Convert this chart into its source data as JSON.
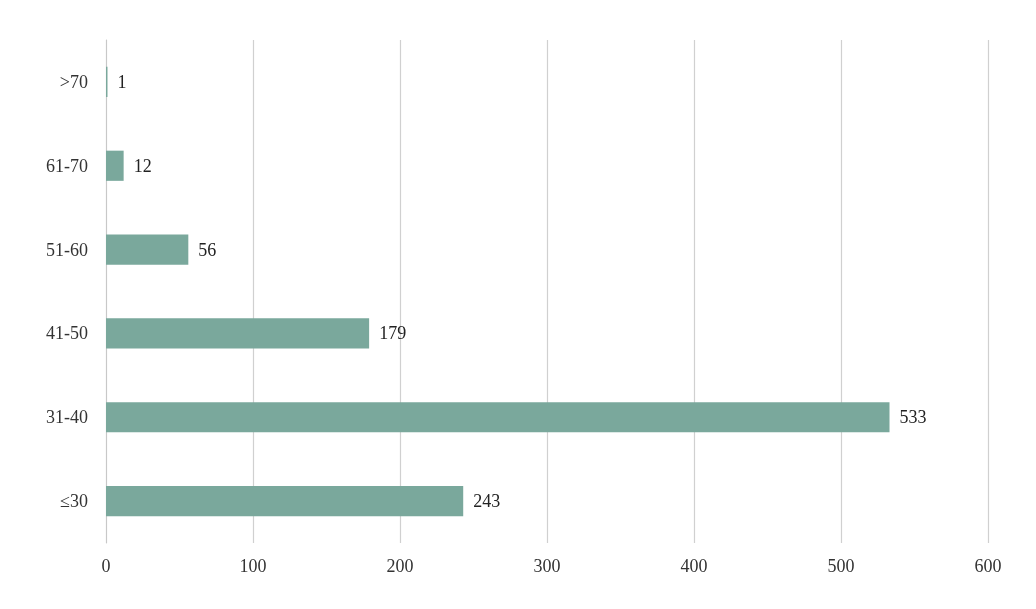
{
  "chart_data": {
    "type": "bar",
    "orientation": "horizontal",
    "categories": [
      ">70",
      "61-70",
      "51-60",
      "41-50",
      "31-40",
      "≤30"
    ],
    "values": [
      1,
      12,
      56,
      179,
      533,
      243
    ],
    "color": "#7aa89c",
    "xlim": [
      0,
      600
    ],
    "xticks": [
      0,
      100,
      200,
      300,
      400,
      500,
      600
    ],
    "grid": "x",
    "data_labels": true
  }
}
